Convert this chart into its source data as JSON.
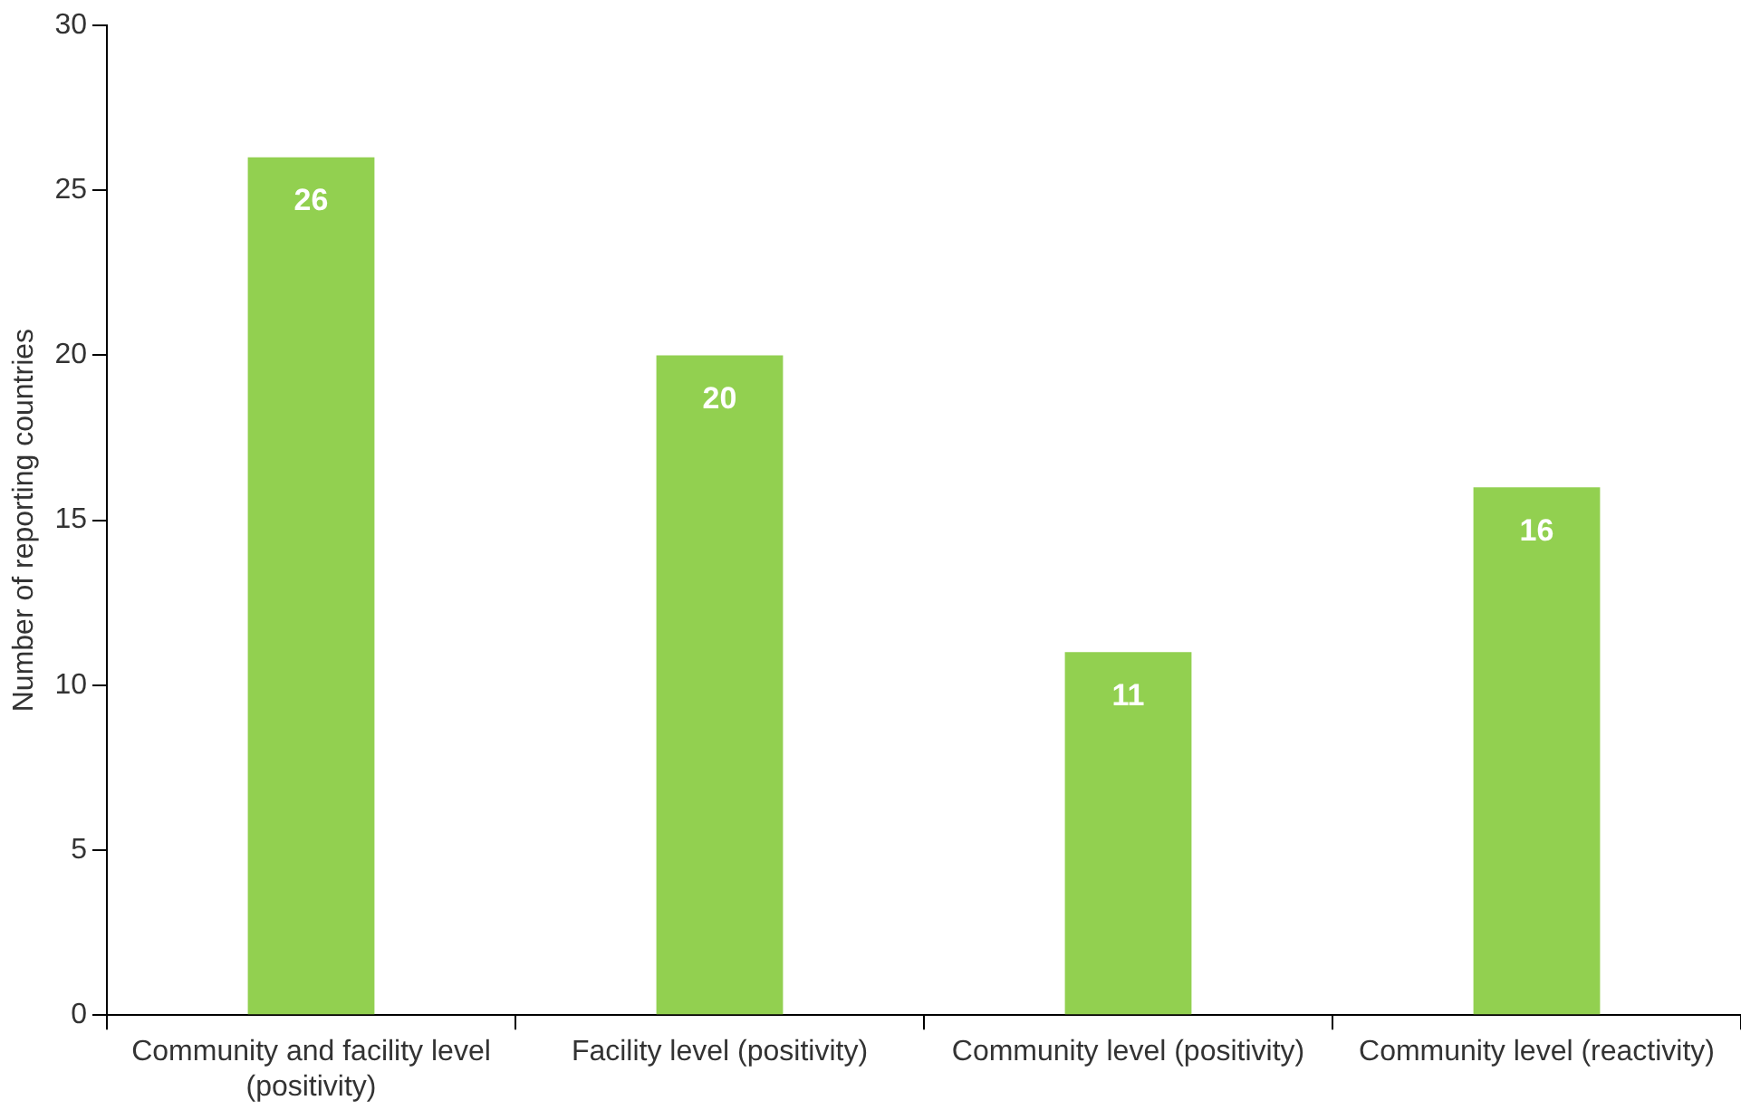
{
  "chart_data": {
    "type": "bar",
    "ylabel": "Number of reporting countries",
    "categories": [
      "Community and facility level (positivity)",
      "Facility level (positivity)",
      "Community level (positivity)",
      "Community level (reactivity)"
    ],
    "values": [
      26,
      20,
      11,
      16
    ],
    "color": "#92d050",
    "ylim": [
      0,
      30
    ],
    "yticks": [
      0,
      5,
      10,
      15,
      20,
      25,
      30
    ],
    "grid": false,
    "legend": false,
    "data_labels": true
  }
}
